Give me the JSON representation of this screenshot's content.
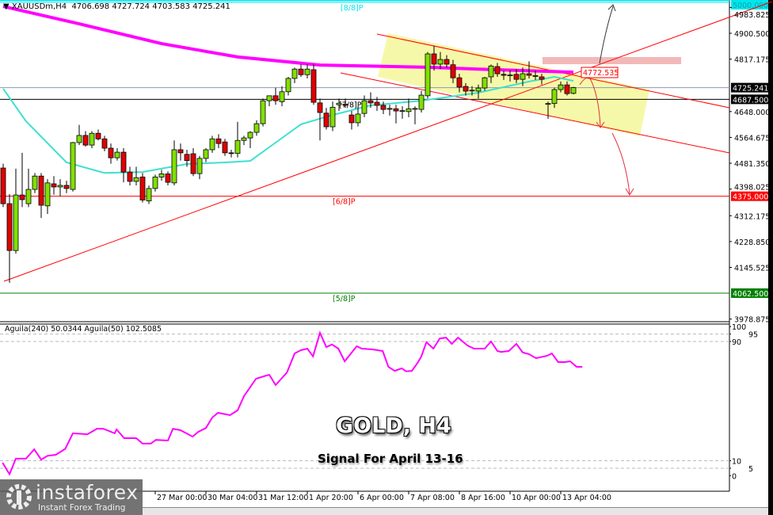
{
  "header": {
    "symbol": "XAUUSDm,H4",
    "ohlc": "4706.698 4727.724 4703.583 4725.241"
  },
  "indicator": {
    "label": "Aguila(240) 50.0344  Aguila(50) 102.5085"
  },
  "overlay": {
    "title": "GOLD, H4",
    "subtitle": "Signal For April 13-16"
  },
  "logo": {
    "brand": "instaforex",
    "tagline": "Instant Forex Trading"
  },
  "colors": {
    "bull": "#80e000",
    "bear": "#e00000",
    "ma_slow": "#ff00ff",
    "ma_fast": "#40e0d0",
    "aguila": "#ff00ff",
    "level_red": "#ff0000",
    "level_green": "#008000",
    "level_cyan": "#00e5ee",
    "zone": "#f5f7a0",
    "target_box": "#f2b8b8"
  },
  "chart_data": {
    "type": "candlestick",
    "ylim": [
      3960,
      5005
    ],
    "y_ticks": [
      "4983.825",
      "4900.500",
      "4817.175",
      "4648.000",
      "4564.675",
      "4481.350",
      "4398.025",
      "4312.175",
      "4228.850",
      "4145.525",
      "3978.875"
    ],
    "x_ticks": [
      {
        "bar": 24,
        "label": "27 Mar 00:00"
      },
      {
        "bar": 32,
        "label": "30 Mar 04:00"
      },
      {
        "bar": 40,
        "label": "31 Mar 12:00"
      },
      {
        "bar": 48,
        "label": "1 Apr 20:00"
      },
      {
        "bar": 56,
        "label": "6 Apr 00:00"
      },
      {
        "bar": 64,
        "label": "7 Apr 08:00"
      },
      {
        "bar": 72,
        "label": "8 Apr 16:00"
      },
      {
        "bar": 80,
        "label": "10 Apr 00:00"
      },
      {
        "bar": 88,
        "label": "13 Apr 04:00"
      }
    ],
    "candles_ohlc": [
      [
        4466,
        4480,
        4340,
        4351
      ],
      [
        4351,
        4382,
        4096,
        4200
      ],
      [
        4200,
        4464,
        4190,
        4379
      ],
      [
        4379,
        4515,
        4340,
        4364
      ],
      [
        4351,
        4464,
        4340,
        4397
      ],
      [
        4397,
        4450,
        4385,
        4440
      ],
      [
        4440,
        4450,
        4305,
        4346
      ],
      [
        4344,
        4430,
        4318,
        4418
      ],
      [
        4415,
        4440,
        4380,
        4405
      ],
      [
        4405,
        4430,
        4375,
        4410
      ],
      [
        4410,
        4425,
        4385,
        4400
      ],
      [
        4397,
        4550,
        4390,
        4548
      ],
      [
        4548,
        4605,
        4540,
        4571
      ],
      [
        4571,
        4585,
        4535,
        4540
      ],
      [
        4540,
        4585,
        4530,
        4578
      ],
      [
        4578,
        4590,
        4555,
        4560
      ],
      [
        4560,
        4570,
        4520,
        4530
      ],
      [
        4530,
        4545,
        4480,
        4499
      ],
      [
        4499,
        4530,
        4490,
        4517
      ],
      [
        4517,
        4530,
        4420,
        4453
      ],
      [
        4453,
        4470,
        4410,
        4423
      ],
      [
        4423,
        4470,
        4410,
        4435
      ],
      [
        4437,
        4450,
        4355,
        4363
      ],
      [
        4360,
        4410,
        4350,
        4400
      ],
      [
        4400,
        4445,
        4390,
        4437
      ],
      [
        4437,
        4460,
        4425,
        4447
      ],
      [
        4447,
        4455,
        4410,
        4420
      ],
      [
        4418,
        4555,
        4410,
        4525
      ],
      [
        4525,
        4545,
        4490,
        4515
      ],
      [
        4510,
        4525,
        4470,
        4490
      ],
      [
        4512,
        4530,
        4440,
        4448
      ],
      [
        4448,
        4505,
        4430,
        4497
      ],
      [
        4497,
        4530,
        4485,
        4525
      ],
      [
        4525,
        4570,
        4515,
        4560
      ],
      [
        4560,
        4575,
        4530,
        4545
      ],
      [
        4550,
        4560,
        4505,
        4515
      ],
      [
        4515,
        4525,
        4500,
        4513
      ],
      [
        4513,
        4615,
        4500,
        4555
      ],
      [
        4555,
        4570,
        4540,
        4563
      ],
      [
        4563,
        4585,
        4530,
        4581
      ],
      [
        4581,
        4620,
        4570,
        4609
      ],
      [
        4609,
        4690,
        4600,
        4683
      ],
      [
        4683,
        4700,
        4665,
        4699
      ],
      [
        4699,
        4725,
        4670,
        4683
      ],
      [
        4680,
        4730,
        4665,
        4712
      ],
      [
        4712,
        4760,
        4700,
        4755
      ],
      [
        4755,
        4790,
        4740,
        4785
      ],
      [
        4785,
        4800,
        4760,
        4767
      ],
      [
        4767,
        4800,
        4755,
        4785
      ],
      [
        4783,
        4800,
        4670,
        4678
      ],
      [
        4676,
        4690,
        4555,
        4645
      ],
      [
        4643,
        4660,
        4590,
        4599
      ],
      [
        4599,
        4680,
        4585,
        4662
      ],
      [
        4670,
        4690,
        4650,
        4675
      ],
      [
        4672,
        4690,
        4660,
        4668
      ],
      [
        4637,
        4650,
        4590,
        4612
      ],
      [
        4612,
        4665,
        4600,
        4640
      ],
      [
        4642,
        4700,
        4630,
        4683
      ],
      [
        4683,
        4710,
        4660,
        4676
      ],
      [
        4678,
        4695,
        4650,
        4668
      ],
      [
        4668,
        4680,
        4640,
        4655
      ],
      [
        4657,
        4670,
        4635,
        4658
      ],
      [
        4657,
        4670,
        4610,
        4650
      ],
      [
        4650,
        4665,
        4625,
        4651
      ],
      [
        4648,
        4690,
        4630,
        4657
      ],
      [
        4657,
        4665,
        4607,
        4658
      ],
      [
        4655,
        4715,
        4645,
        4701
      ],
      [
        4699,
        4840,
        4690,
        4834
      ],
      [
        4834,
        4860,
        4780,
        4801
      ],
      [
        4801,
        4840,
        4785,
        4816
      ],
      [
        4816,
        4830,
        4790,
        4801
      ],
      [
        4799,
        4815,
        4740,
        4757
      ],
      [
        4757,
        4770,
        4710,
        4727
      ],
      [
        4729,
        4740,
        4700,
        4714
      ],
      [
        4716,
        4730,
        4700,
        4717
      ],
      [
        4714,
        4735,
        4690,
        4724
      ],
      [
        4724,
        4760,
        4715,
        4757
      ],
      [
        4760,
        4800,
        4740,
        4795
      ],
      [
        4793,
        4805,
        4760,
        4770
      ],
      [
        4768,
        4780,
        4750,
        4765
      ],
      [
        4765,
        4780,
        4745,
        4766
      ],
      [
        4768,
        4785,
        4740,
        4752
      ],
      [
        4752,
        4790,
        4730,
        4770
      ],
      [
        4770,
        4810,
        4755,
        4765
      ],
      [
        4763,
        4780,
        4750,
        4764
      ],
      [
        4760,
        4770,
        4735,
        4752
      ],
      [
        4672,
        4680,
        4625,
        4674
      ],
      [
        4674,
        4725,
        4660,
        4719
      ],
      [
        4719,
        4745,
        4710,
        4734
      ],
      [
        4734,
        4745,
        4700,
        4706
      ],
      [
        4706.698,
        4727.724,
        4703.583,
        4725.241
      ]
    ],
    "ma_slow": [
      [
        0,
        4987
      ],
      [
        12,
        4931
      ],
      [
        25,
        4867
      ],
      [
        37,
        4824
      ],
      [
        50,
        4798
      ],
      [
        67,
        4791
      ],
      [
        75,
        4785
      ],
      [
        90,
        4775
      ]
    ],
    "ma_fast": [
      [
        0,
        4722
      ],
      [
        3.6,
        4617
      ],
      [
        10,
        4484
      ],
      [
        16,
        4450
      ],
      [
        22,
        4453
      ],
      [
        29,
        4479
      ],
      [
        35,
        4484
      ],
      [
        39,
        4489
      ],
      [
        43,
        4548
      ],
      [
        47,
        4607
      ],
      [
        52,
        4637
      ],
      [
        58,
        4668
      ],
      [
        66,
        4683
      ],
      [
        75,
        4709
      ],
      [
        83,
        4745
      ],
      [
        87,
        4760
      ],
      [
        90,
        4747
      ]
    ],
    "levels": [
      {
        "price": 5000.0,
        "label": "[8/8]P",
        "tag": "5000.000",
        "color": "#00e5ee"
      },
      {
        "price": 4725.241,
        "label": "",
        "tag": "4725.241",
        "color": "#8c9ab0"
      },
      {
        "price": 4687.5,
        "label": "[7/8]P",
        "tag": "4687.500",
        "color": "#000000"
      },
      {
        "price": 4375.0,
        "label": "[6/8]P",
        "tag": "4375.000",
        "color": "#ff0000"
      },
      {
        "price": 4062.5,
        "label": "[5/8]P",
        "tag": "4062.500",
        "color": "#008000"
      }
    ],
    "annotation": {
      "target_label": "4772.535"
    },
    "aguila": {
      "ylim": [
        0,
        100
      ],
      "y_ticks": [
        "100",
        "95",
        "90",
        "10",
        "5",
        "0"
      ],
      "dashed_levels": [
        95,
        90,
        10,
        5
      ],
      "points": [
        [
          -0.1,
          8.7
        ],
        [
          1,
          1
        ],
        [
          2,
          11.4
        ],
        [
          3.6,
          11.4
        ],
        [
          4.9,
          17.7
        ],
        [
          6,
          10.8
        ],
        [
          7,
          13.3
        ],
        [
          8.3,
          14
        ],
        [
          9.8,
          18
        ],
        [
          11,
          28.4
        ],
        [
          13.3,
          27.8
        ],
        [
          14.8,
          31.5
        ],
        [
          15.8,
          31.5
        ],
        [
          17.6,
          28.4
        ],
        [
          17.9,
          31
        ],
        [
          19.1,
          25.2
        ],
        [
          21,
          25.2
        ],
        [
          22,
          21.5
        ],
        [
          23.3,
          21.5
        ],
        [
          24.1,
          24
        ],
        [
          26,
          23.6
        ],
        [
          26.8,
          31.5
        ],
        [
          28,
          30.5
        ],
        [
          29.9,
          26.2
        ],
        [
          30.8,
          29.4
        ],
        [
          32,
          32
        ],
        [
          33,
          39
        ],
        [
          33.9,
          42.2
        ],
        [
          35.8,
          40.6
        ],
        [
          37,
          43.8
        ],
        [
          38,
          53.3
        ],
        [
          39.9,
          65
        ],
        [
          41.1,
          66.6
        ],
        [
          42,
          67.7
        ],
        [
          43,
          60.8
        ],
        [
          44.8,
          69.3
        ],
        [
          46,
          82
        ],
        [
          47,
          84.2
        ],
        [
          48,
          85.2
        ],
        [
          48.9,
          80
        ],
        [
          50,
          95.8
        ],
        [
          51,
          86.3
        ],
        [
          51.9,
          88
        ],
        [
          52.9,
          85.2
        ],
        [
          53.9,
          76.7
        ],
        [
          55.8,
          86.8
        ],
        [
          56.6,
          85.2
        ],
        [
          58.3,
          84.7
        ],
        [
          59.9,
          83.6
        ],
        [
          60.8,
          73
        ],
        [
          61.8,
          70.3
        ],
        [
          62.9,
          72
        ],
        [
          63.6,
          70
        ],
        [
          64.5,
          70.3
        ],
        [
          65.4,
          75.6
        ],
        [
          66,
          80
        ],
        [
          66.8,
          89.5
        ],
        [
          67.9,
          85.2
        ],
        [
          68.9,
          92
        ],
        [
          69.9,
          92.6
        ],
        [
          70.8,
          88.4
        ],
        [
          71.8,
          92.6
        ],
        [
          73.3,
          87.3
        ],
        [
          74.3,
          85.2
        ],
        [
          76,
          85.2
        ],
        [
          77,
          90
        ],
        [
          78,
          83.6
        ],
        [
          78.6,
          83
        ],
        [
          79.8,
          83.6
        ],
        [
          81,
          88.4
        ],
        [
          82,
          82.6
        ],
        [
          83,
          81.5
        ],
        [
          84.1,
          78.8
        ],
        [
          85.8,
          80.4
        ],
        [
          86.6,
          82
        ],
        [
          87.6,
          76.2
        ],
        [
          88.6,
          76.2
        ],
        [
          89.5,
          76.7
        ],
        [
          90.5,
          73
        ],
        [
          91.4,
          73
        ]
      ]
    }
  }
}
